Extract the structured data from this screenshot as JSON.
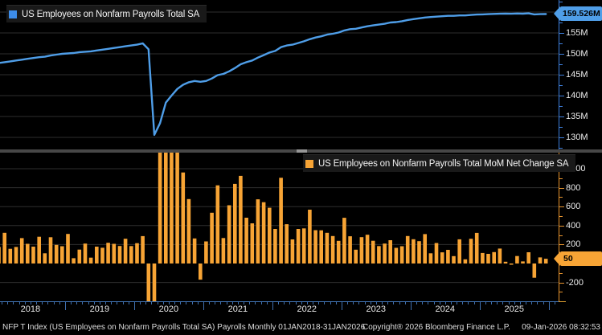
{
  "colors": {
    "background": "#000000",
    "line_blue": "#4f9ee8",
    "axis_blue": "#3d7edb",
    "bar_orange": "#f7a435",
    "axis_orange": "#e8952e",
    "x_axis_blue": "#3f6fad",
    "gridline": "#2e2e2e",
    "legend_bg": "#191919",
    "text": "#ececec"
  },
  "top_panel": {
    "axis_ticks": [
      {
        "v": 155,
        "label": "155M"
      },
      {
        "v": 150,
        "label": "150M"
      },
      {
        "v": 145,
        "label": "145M"
      },
      {
        "v": 140,
        "label": "140M"
      },
      {
        "v": 135,
        "label": "135M"
      },
      {
        "v": 130,
        "label": "130M"
      }
    ],
    "grid_values": [
      160,
      155,
      150,
      145,
      140,
      135,
      130
    ],
    "last_value_label": "159.526M"
  },
  "bottom_panel": {
    "axis_ticks": [
      {
        "v": 1000,
        "label": "1000"
      },
      {
        "v": 800,
        "label": "800"
      },
      {
        "v": 600,
        "label": "600"
      },
      {
        "v": 400,
        "label": "400"
      },
      {
        "v": 200,
        "label": "200"
      },
      {
        "v": 0,
        "label": "0"
      },
      {
        "v": -200,
        "label": "-200"
      }
    ],
    "grid_values": [
      1000,
      800,
      600,
      400,
      200,
      -200
    ],
    "last_value_label": "50"
  },
  "x_axis": {
    "years": [
      "2018",
      "2019",
      "2020",
      "2021",
      "2022",
      "2023",
      "2024",
      "2025"
    ],
    "range_label": "01JAN2018-31JAN2026"
  },
  "footer": {
    "left": "NFP T Index (US Employees on Nonfarm Payrolls Total SA) Payrolls Monthly 01JAN2018-31JAN2026",
    "copyright": "Copyright® 2026 Bloomberg Finance L.P.",
    "timestamp": "09-Jan-2026 08:32:53"
  },
  "chart_data": [
    {
      "type": "line",
      "title": "US Employees on Nonfarm Payrolls Total SA",
      "unit": "M",
      "start_month": "2018-01",
      "frequency": "monthly",
      "ylim": [
        127,
        161.5
      ],
      "yticks": [
        130,
        135,
        140,
        145,
        150,
        155
      ],
      "legend_position": "top-left",
      "grid": true,
      "last_value": 159.526,
      "last_value_label": "159.526M",
      "color": "#4f9ee8",
      "values": [
        147.8,
        148.0,
        148.2,
        148.4,
        148.6,
        148.8,
        149.0,
        149.2,
        149.3,
        149.6,
        149.8,
        150.0,
        150.1,
        150.2,
        150.4,
        150.5,
        150.6,
        150.8,
        151.0,
        151.2,
        151.4,
        151.6,
        151.8,
        152.0,
        152.2,
        152.5,
        151.1,
        130.6,
        133.4,
        138.3,
        140.0,
        141.6,
        142.6,
        143.2,
        143.5,
        143.3,
        143.5,
        144.1,
        144.9,
        145.2,
        145.8,
        146.6,
        147.5,
        148.0,
        148.4,
        149.1,
        149.7,
        150.3,
        150.7,
        151.6,
        152.0,
        152.2,
        152.6,
        153.0,
        153.5,
        153.9,
        154.2,
        154.6,
        154.8,
        155.1,
        155.6,
        155.9,
        156.0,
        156.3,
        156.6,
        156.8,
        157.0,
        157.2,
        157.5,
        157.6,
        157.8,
        158.1,
        158.3,
        158.5,
        158.7,
        158.8,
        158.9,
        159.0,
        159.1,
        159.1,
        159.2,
        159.2,
        159.3,
        159.4,
        159.45,
        159.5,
        159.55,
        159.6,
        159.62,
        159.6,
        159.65,
        159.62,
        159.7,
        159.45,
        159.5,
        159.526
      ]
    },
    {
      "type": "bar",
      "title": "US Employees on Nonfarm Payrolls Total MoM Net Change SA",
      "unit": "K",
      "start_month": "2018-01",
      "frequency": "monthly",
      "ylim": [
        -400,
        1170
      ],
      "yticks": [
        1000,
        800,
        600,
        400,
        200,
        0,
        -200
      ],
      "legend_position": "top-right",
      "grid": true,
      "clipping": "bars beyond ylim are clipped at panel edges",
      "last_value": 50,
      "last_value_label": "50",
      "color": "#f7a435",
      "values": [
        175,
        324,
        155,
        175,
        268,
        208,
        178,
        282,
        108,
        277,
        197,
        182,
        312,
        56,
        147,
        210,
        62,
        178,
        166,
        219,
        208,
        185,
        261,
        184,
        214,
        289,
        -1398,
        -20493,
        2833,
        4846,
        1726,
        1583,
        960,
        680,
        264,
        -170,
        233,
        536,
        825,
        269,
        614,
        840,
        925,
        483,
        424,
        677,
        647,
        588,
        364,
        904,
        414,
        254,
        364,
        370,
        568,
        352,
        350,
        324,
        290,
        239,
        482,
        287,
        146,
        278,
        303,
        240,
        184,
        210,
        246,
        165,
        182,
        290,
        256,
        236,
        310,
        108,
        216,
        118,
        144,
        78,
        255,
        44,
        261,
        323,
        111,
        102,
        120,
        158,
        19,
        -13,
        79,
        22,
        119,
        -150,
        64,
        50
      ]
    }
  ]
}
